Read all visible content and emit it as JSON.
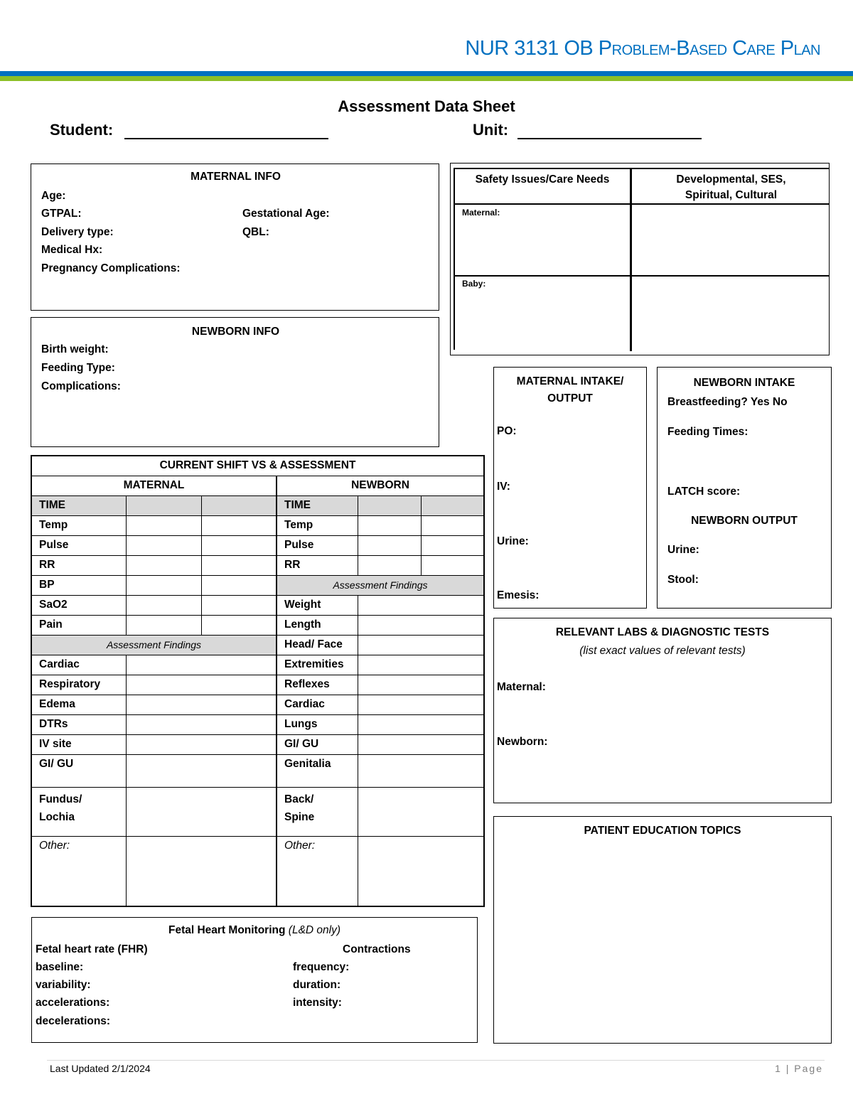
{
  "header": {
    "title": "NUR 3131 OB Problem-Based Care Plan",
    "accent": "#0070c0",
    "secondary": "#8cbf26"
  },
  "sheet": {
    "title": "Assessment Data Sheet",
    "student_label": "Student:",
    "unit_label": "Unit:"
  },
  "maternal_info": {
    "heading": "MATERNAL INFO",
    "age": "Age:",
    "gtpal": "GTPAL:",
    "gestational_age": "Gestational Age:",
    "delivery_type": "Delivery type:",
    "qbl": "QBL:",
    "medical_hx": "Medical Hx:",
    "pregnancy_complications": "Pregnancy Complications:"
  },
  "newborn_info": {
    "heading": "NEWBORN INFO",
    "birth_weight": "Birth weight:",
    "feeding_type": "Feeding Type:",
    "complications": "Complications:"
  },
  "safety": {
    "col1": "Safety Issues/Care Needs",
    "col2": "Developmental, SES, Spiritual, Cultural",
    "maternal": "Maternal:",
    "baby": "Baby:"
  },
  "maternal_io": {
    "heading": "MATERNAL INTAKE/ OUTPUT",
    "po": "PO:",
    "iv": "IV:",
    "urine": "Urine:",
    "emesis": "Emesis:"
  },
  "newborn_intake": {
    "heading": "NEWBORN INTAKE",
    "breastfeeding": "Breastfeeding? Yes No",
    "feeding_times": "Feeding Times:",
    "latch": "LATCH score:",
    "output_heading": "NEWBORN OUTPUT",
    "urine": "Urine:",
    "stool": "Stool:"
  },
  "labs": {
    "heading": "RELEVANT LABS & DIAGNOSTIC TESTS",
    "subheading": "(list exact values of relevant tests)",
    "maternal": "Maternal:",
    "newborn": "Newborn:"
  },
  "education": {
    "heading": "PATIENT EDUCATION TOPICS"
  },
  "vs": {
    "title": "CURRENT SHIFT VS & ASSESSMENT",
    "maternal": "MATERNAL",
    "newborn": "NEWBORN",
    "time": "TIME",
    "vitals_m": [
      "Temp",
      "Pulse",
      "RR",
      "BP",
      "SaO2",
      "Pain"
    ],
    "vitals_n": [
      "Temp",
      "Pulse",
      "RR"
    ],
    "assessment_findings": "Assessment Findings",
    "newborn_findings": [
      "Weight",
      "Length",
      "Head/ Face",
      "Extremities",
      "Reflexes",
      "Cardiac",
      "Lungs",
      "GI/ GU",
      "Genitalia",
      "Back/ Spine"
    ],
    "maternal_findings": [
      "Cardiac",
      "Respiratory",
      "Edema",
      "DTRs",
      "IV site",
      "GI/ GU",
      "Fundus/ Lochia"
    ],
    "other": "Other:"
  },
  "fetal": {
    "heading": "Fetal Heart Monitoring",
    "heading_note": "(L&D only)",
    "fhr": "Fetal heart rate (FHR)",
    "baseline": "baseline:",
    "variability": "variability:",
    "accelerations": "accelerations:",
    "decelerations": "decelerations:",
    "contractions": "Contractions",
    "frequency": "frequency:",
    "duration": "duration:",
    "intensity": "intensity:"
  },
  "footer": {
    "updated": "Last Updated 2/1/2024",
    "page": "1 | Page"
  }
}
